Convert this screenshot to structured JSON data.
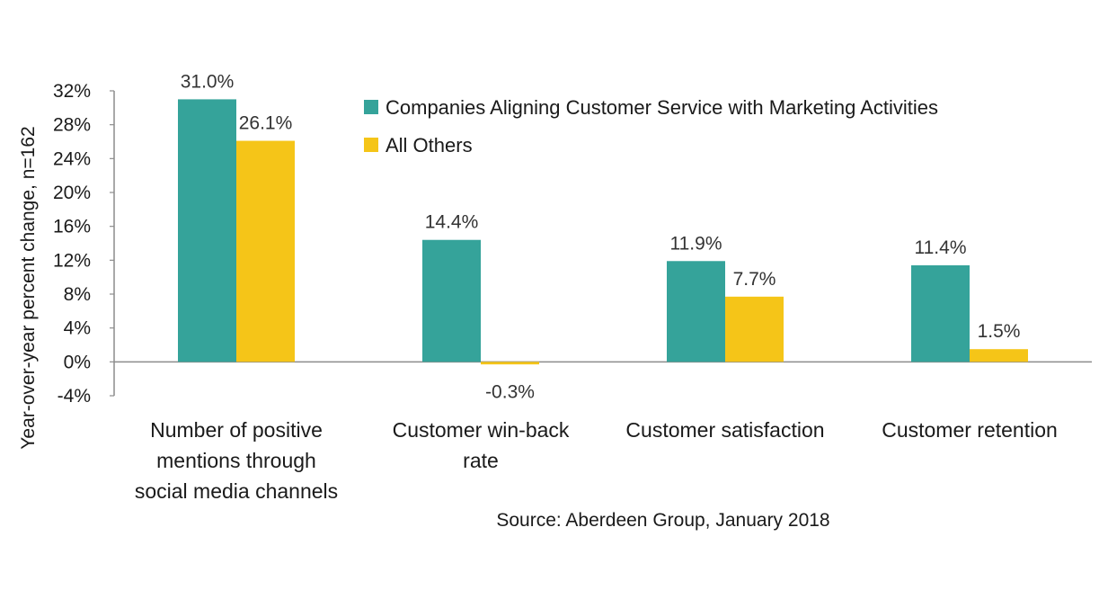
{
  "chart_data": {
    "type": "bar",
    "ylabel": "Year-over-year percent change, n=162",
    "ylim": [
      -4,
      32
    ],
    "yticks": [
      "32%",
      "28%",
      "24%",
      "20%",
      "16%",
      "12%",
      "8%",
      "4%",
      "0%",
      "-4%"
    ],
    "ytick_values": [
      32,
      28,
      24,
      20,
      16,
      12,
      8,
      4,
      0,
      -4
    ],
    "categories": [
      [
        "Number of positive",
        "mentions through",
        "social media channels"
      ],
      [
        "Customer win-back",
        "rate"
      ],
      [
        "Customer satisfaction"
      ],
      [
        "Customer retention"
      ]
    ],
    "series": [
      {
        "name": "Companies Aligning Customer Service with Marketing Activities",
        "color": "#35a39a",
        "values": [
          31.0,
          14.4,
          11.9,
          11.4
        ],
        "labels": [
          "31.0%",
          "14.4%",
          "11.9%",
          "11.4%"
        ]
      },
      {
        "name": "All Others",
        "color": "#f5c518",
        "values": [
          26.1,
          -0.3,
          7.7,
          1.5
        ],
        "labels": [
          "26.1%",
          "-0.3%",
          "7.7%",
          "1.5%"
        ]
      }
    ],
    "legend_position": "top-right",
    "grid": false,
    "source": "Source: Aberdeen Group, January 2018"
  }
}
